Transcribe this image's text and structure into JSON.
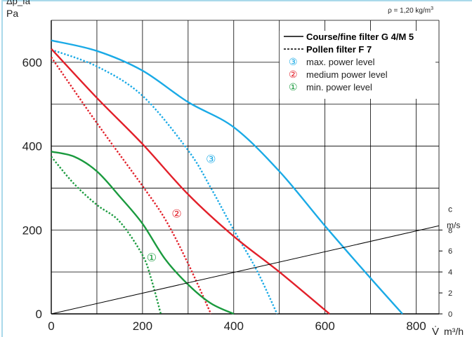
{
  "chart_data": {
    "type": "line",
    "title": "",
    "ylabel": "Δp_fa",
    "y_unit": "Pa",
    "xlabel": "V̇",
    "x_unit": "m³/h",
    "density_note": {
      "prefix": "ρ = 1,20 kg/m",
      "sup": "3"
    },
    "xlim": [
      0,
      850
    ],
    "ylim": [
      0,
      700
    ],
    "x_ticks": [
      0,
      200,
      400,
      600,
      800
    ],
    "y_ticks": [
      0,
      200,
      400,
      600
    ],
    "grid": true,
    "grid_x_step": 100,
    "grid_y_step": 100,
    "right_axis": {
      "label": "c",
      "unit": "m/s",
      "ticks": [
        0,
        2,
        4,
        6,
        8
      ],
      "pa_per_unit": 25
    },
    "legend_position": "top-right",
    "legend": [
      {
        "style": "solid",
        "text": "Course/fine filter G 4/M 5"
      },
      {
        "style": "dotted",
        "text": "Pollen filter F 7"
      },
      {
        "marker": "③",
        "color": "#1aaae6",
        "text": "max. power level"
      },
      {
        "marker": "②",
        "color": "#e2202a",
        "text": "medium power level"
      },
      {
        "marker": "①",
        "color": "#1a9a3e",
        "text": "min. power level"
      }
    ],
    "curve_labels": [
      {
        "text": "③",
        "color": "#1aaae6",
        "x": 350,
        "y": 370
      },
      {
        "text": "②",
        "color": "#e2202a",
        "x": 275,
        "y": 240
      },
      {
        "text": "①",
        "color": "#1a9a3e",
        "x": 220,
        "y": 135
      }
    ],
    "series": [
      {
        "name": "③ max. power level — G 4/M 5",
        "level": 3,
        "filter": "G 4/M 5",
        "style": "solid",
        "color": "#1aaae6",
        "points": [
          [
            0,
            652
          ],
          [
            100,
            627
          ],
          [
            200,
            580
          ],
          [
            300,
            505
          ],
          [
            400,
            445
          ],
          [
            500,
            340
          ],
          [
            600,
            210
          ],
          [
            700,
            85
          ],
          [
            770,
            0
          ]
        ]
      },
      {
        "name": "③ max. power level — F 7",
        "level": 3,
        "filter": "F 7",
        "style": "dotted",
        "color": "#1aaae6",
        "points": [
          [
            0,
            630
          ],
          [
            100,
            590
          ],
          [
            200,
            520
          ],
          [
            300,
            390
          ],
          [
            350,
            300
          ],
          [
            400,
            200
          ],
          [
            450,
            105
          ],
          [
            495,
            0
          ]
        ]
      },
      {
        "name": "② medium power level — G 4/M 5",
        "level": 2,
        "filter": "G 4/M 5",
        "style": "solid",
        "color": "#e2202a",
        "points": [
          [
            0,
            632
          ],
          [
            100,
            515
          ],
          [
            200,
            405
          ],
          [
            300,
            285
          ],
          [
            400,
            185
          ],
          [
            500,
            100
          ],
          [
            610,
            0
          ]
        ]
      },
      {
        "name": "② medium power level — F 7",
        "level": 2,
        "filter": "F 7",
        "style": "dotted",
        "color": "#e2202a",
        "points": [
          [
            0,
            612
          ],
          [
            100,
            455
          ],
          [
            200,
            305
          ],
          [
            250,
            225
          ],
          [
            300,
            120
          ],
          [
            350,
            0
          ]
        ]
      },
      {
        "name": "① min. power level — G 4/M 5",
        "level": 1,
        "filter": "G 4/M 5",
        "style": "solid",
        "color": "#1a9a3e",
        "points": [
          [
            0,
            387
          ],
          [
            50,
            375
          ],
          [
            100,
            340
          ],
          [
            150,
            280
          ],
          [
            200,
            215
          ],
          [
            250,
            130
          ],
          [
            300,
            70
          ],
          [
            350,
            25
          ],
          [
            400,
            0
          ]
        ]
      },
      {
        "name": "① min. power level — F 7",
        "level": 1,
        "filter": "F 7",
        "style": "dotted",
        "color": "#1a9a3e",
        "points": [
          [
            0,
            375
          ],
          [
            50,
            310
          ],
          [
            100,
            260
          ],
          [
            150,
            220
          ],
          [
            200,
            140
          ],
          [
            220,
            80
          ],
          [
            240,
            0
          ]
        ]
      },
      {
        "name": "c (m/s)",
        "style": "thin",
        "color": "#000000",
        "points": [
          [
            0,
            0
          ],
          [
            850,
            210
          ]
        ]
      }
    ]
  }
}
